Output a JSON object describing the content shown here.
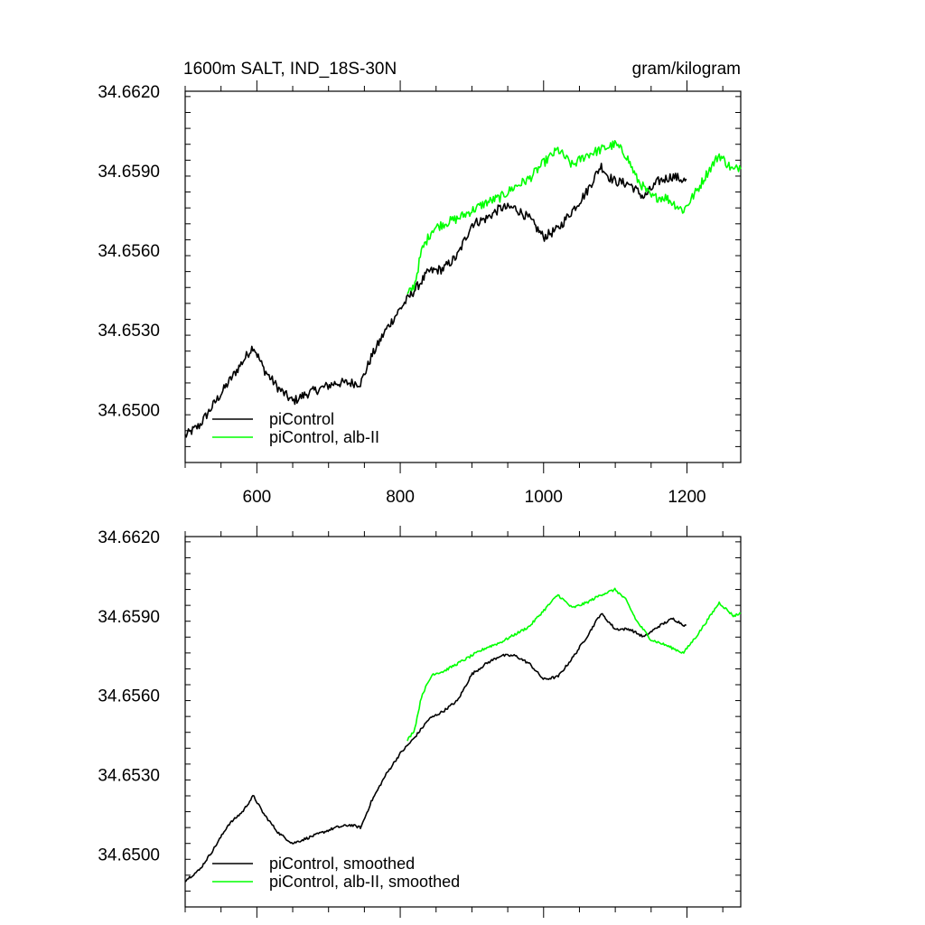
{
  "chart_data": [
    {
      "type": "line",
      "title_left": "1600m SALT, IND_18S-30N",
      "title_right": "gram/kilogram",
      "xlim": [
        500,
        1275
      ],
      "ylim": [
        34.648,
        34.662
      ],
      "x_ticks": [
        600,
        800,
        1000,
        1200
      ],
      "x_tick_labels": [
        "600",
        "800",
        "1000",
        "1200"
      ],
      "y_ticks": [
        34.65,
        34.653,
        34.656,
        34.659,
        34.662
      ],
      "y_tick_labels": [
        "34.6500",
        "34.6530",
        "34.6560",
        "34.6590",
        "34.6620"
      ],
      "legend_position": "bottom-left",
      "series": [
        {
          "name": "piControl",
          "color": "#000000",
          "x": [
            500,
            520,
            540,
            560,
            580,
            595,
            610,
            630,
            650,
            670,
            690,
            710,
            730,
            745,
            760,
            780,
            800,
            820,
            840,
            860,
            880,
            900,
            920,
            940,
            960,
            980,
            1000,
            1020,
            1040,
            1060,
            1080,
            1090,
            1100,
            1120,
            1140,
            1160,
            1180,
            1200
          ],
          "y": [
            34.649,
            34.6494,
            34.6502,
            34.651,
            34.6518,
            34.6524,
            34.6515,
            34.6508,
            34.6503,
            34.6506,
            34.6508,
            34.651,
            34.651,
            34.651,
            34.652,
            34.653,
            34.6538,
            34.6545,
            34.6552,
            34.6553,
            34.6558,
            34.657,
            34.6572,
            34.6576,
            34.6576,
            34.6572,
            34.6565,
            34.6568,
            34.6575,
            34.6582,
            34.6592,
            34.6588,
            34.6586,
            34.6585,
            34.658,
            34.6586,
            34.6588,
            34.6586
          ]
        },
        {
          "name": "piControl, alb-II",
          "color": "#00ff00",
          "x": [
            810,
            820,
            830,
            845,
            860,
            880,
            900,
            920,
            940,
            960,
            980,
            1000,
            1020,
            1040,
            1060,
            1080,
            1100,
            1115,
            1130,
            1150,
            1170,
            1195,
            1215,
            1230,
            1245,
            1265,
            1275
          ],
          "y": [
            34.6543,
            34.6547,
            34.656,
            34.6568,
            34.657,
            34.6572,
            34.6575,
            34.6578,
            34.658,
            34.6584,
            34.6587,
            34.6593,
            34.6598,
            34.6592,
            34.6596,
            34.6598,
            34.66,
            34.6596,
            34.6587,
            34.658,
            34.658,
            34.6575,
            34.6583,
            34.659,
            34.6596,
            34.659,
            34.6592
          ]
        }
      ]
    },
    {
      "type": "line",
      "xlim": [
        500,
        1275
      ],
      "ylim": [
        34.648,
        34.662
      ],
      "x_ticks": [
        600,
        800,
        1000,
        1200
      ],
      "y_ticks": [
        34.65,
        34.653,
        34.656,
        34.659,
        34.662
      ],
      "y_tick_labels": [
        "34.6500",
        "34.6530",
        "34.6560",
        "34.6590",
        "34.6620"
      ],
      "legend_position": "bottom-left",
      "series": [
        {
          "name": "piControl, smoothed",
          "color": "#000000",
          "x": [
            500,
            520,
            540,
            560,
            580,
            595,
            610,
            630,
            650,
            670,
            690,
            710,
            730,
            745,
            760,
            780,
            800,
            820,
            840,
            860,
            880,
            900,
            920,
            940,
            960,
            980,
            1000,
            1020,
            1040,
            1060,
            1080,
            1090,
            1100,
            1120,
            1140,
            1160,
            1180,
            1200
          ],
          "y": [
            34.649,
            34.6494,
            34.6502,
            34.6511,
            34.6516,
            34.6522,
            34.6515,
            34.6508,
            34.6504,
            34.6506,
            34.6508,
            34.651,
            34.6511,
            34.651,
            34.652,
            34.653,
            34.6538,
            34.6544,
            34.6551,
            34.6554,
            34.6558,
            34.6568,
            34.6572,
            34.6575,
            34.6575,
            34.6572,
            34.6566,
            34.6567,
            34.6574,
            34.6582,
            34.6591,
            34.6588,
            34.6585,
            34.6585,
            34.6582,
            34.6586,
            34.6589,
            34.6586
          ]
        },
        {
          "name": "piControl, alb-II, smoothed",
          "color": "#00ff00",
          "x": [
            810,
            820,
            830,
            845,
            860,
            880,
            900,
            920,
            940,
            960,
            980,
            1000,
            1020,
            1040,
            1060,
            1080,
            1100,
            1115,
            1130,
            1150,
            1170,
            1195,
            1215,
            1230,
            1245,
            1265,
            1275
          ],
          "y": [
            34.6543,
            34.6547,
            34.656,
            34.6568,
            34.6569,
            34.6572,
            34.6575,
            34.6578,
            34.658,
            34.6583,
            34.6586,
            34.6592,
            34.6598,
            34.6593,
            34.6595,
            34.6598,
            34.66,
            34.6596,
            34.6588,
            34.6581,
            34.6579,
            34.6576,
            34.6583,
            34.6589,
            34.6595,
            34.659,
            34.6591
          ]
        }
      ]
    }
  ]
}
